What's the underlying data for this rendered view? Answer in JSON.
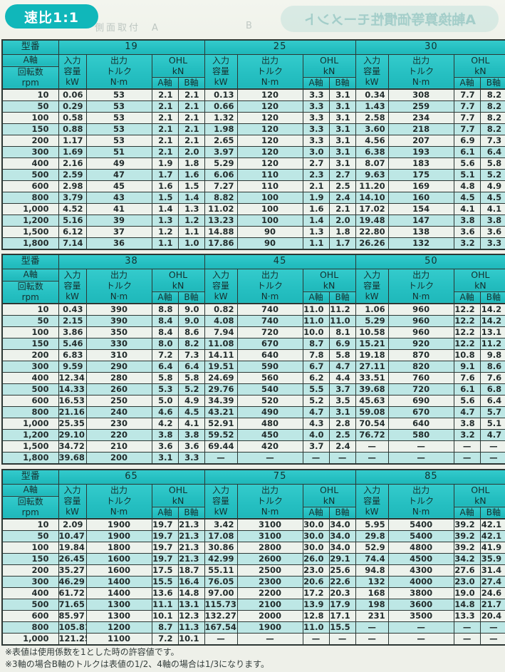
{
  "page": {
    "badge": "速比1:1",
    "badge_color": "#10b7ba",
    "header_teal": "#25bfc1",
    "stripe_color": "#bde7e5",
    "ghost_side_label": "側面取付　A",
    "ghost_side_label_b": "B",
    "ghost_mirror_title": "A軸換算等価慣性モーメント"
  },
  "columns": {
    "model": "型番",
    "axis_top": "A軸",
    "axis_bottom": "回転数\nrpm",
    "input": "入力\n容量\nkW",
    "output": "出力\nトルク\nN·m",
    "ohl": "OHL\nkN",
    "a": "A軸",
    "b": "B軸"
  },
  "notes": [
    "※表値は使用係数を1とした時の許容値です。",
    "※3軸の場合B軸のトルクは表値の1/2、4軸の場合は1/3になります。"
  ],
  "tables": [
    {
      "models": [
        "19",
        "25",
        "30"
      ],
      "rows": [
        {
          "rpm": "10",
          "values": [
            [
              "0.06",
              "53",
              "2.1",
              "2.1"
            ],
            [
              "0.13",
              "120",
              "3.3",
              "3.1"
            ],
            [
              "0.34",
              "308",
              "7.7",
              "8.2"
            ]
          ]
        },
        {
          "rpm": "50",
          "values": [
            [
              "0.29",
              "53",
              "2.1",
              "2.1"
            ],
            [
              "0.66",
              "120",
              "3.3",
              "3.1"
            ],
            [
              "1.43",
              "259",
              "7.7",
              "8.2"
            ]
          ]
        },
        {
          "rpm": "100",
          "values": [
            [
              "0.58",
              "53",
              "2.1",
              "2.1"
            ],
            [
              "1.32",
              "120",
              "3.3",
              "3.1"
            ],
            [
              "2.58",
              "234",
              "7.7",
              "8.2"
            ]
          ]
        },
        {
          "rpm": "150",
          "values": [
            [
              "0.88",
              "53",
              "2.1",
              "2.1"
            ],
            [
              "1.98",
              "120",
              "3.3",
              "3.1"
            ],
            [
              "3.60",
              "218",
              "7.7",
              "8.2"
            ]
          ]
        },
        {
          "rpm": "200",
          "values": [
            [
              "1.17",
              "53",
              "2.1",
              "2.1"
            ],
            [
              "2.65",
              "120",
              "3.3",
              "3.1"
            ],
            [
              "4.56",
              "207",
              "6.9",
              "7.3"
            ]
          ]
        },
        {
          "rpm": "300",
          "values": [
            [
              "1.69",
              "51",
              "2.1",
              "2.0"
            ],
            [
              "3.97",
              "120",
              "3.0",
              "3.1"
            ],
            [
              "6.38",
              "193",
              "6.1",
              "6.4"
            ]
          ]
        },
        {
          "rpm": "400",
          "values": [
            [
              "2.16",
              "49",
              "1.9",
              "1.8"
            ],
            [
              "5.29",
              "120",
              "2.7",
              "3.1"
            ],
            [
              "8.07",
              "183",
              "5.6",
              "5.8"
            ]
          ]
        },
        {
          "rpm": "500",
          "values": [
            [
              "2.59",
              "47",
              "1.7",
              "1.6"
            ],
            [
              "6.06",
              "110",
              "2.3",
              "2.7"
            ],
            [
              "9.63",
              "175",
              "5.1",
              "5.2"
            ]
          ]
        },
        {
          "rpm": "600",
          "values": [
            [
              "2.98",
              "45",
              "1.6",
              "1.5"
            ],
            [
              "7.27",
              "110",
              "2.1",
              "2.5"
            ],
            [
              "11.20",
              "169",
              "4.8",
              "4.9"
            ]
          ]
        },
        {
          "rpm": "800",
          "values": [
            [
              "3.79",
              "43",
              "1.5",
              "1.4"
            ],
            [
              "8.82",
              "100",
              "1.9",
              "2.4"
            ],
            [
              "14.10",
              "160",
              "4.5",
              "4.5"
            ]
          ]
        },
        {
          "rpm": "1,000",
          "values": [
            [
              "4.52",
              "41",
              "1.4",
              "1.3"
            ],
            [
              "11.02",
              "100",
              "1.6",
              "2.1"
            ],
            [
              "17.02",
              "154",
              "4.1",
              "4.1"
            ]
          ]
        },
        {
          "rpm": "1,200",
          "values": [
            [
              "5.16",
              "39",
              "1.3",
              "1.2"
            ],
            [
              "13.23",
              "100",
              "1.4",
              "2.0"
            ],
            [
              "19.48",
              "147",
              "3.8",
              "3.8"
            ]
          ]
        },
        {
          "rpm": "1,500",
          "values": [
            [
              "6.12",
              "37",
              "1.2",
              "1.1"
            ],
            [
              "14.88",
              "90",
              "1.3",
              "1.8"
            ],
            [
              "22.80",
              "138",
              "3.6",
              "3.6"
            ]
          ]
        },
        {
          "rpm": "1,800",
          "values": [
            [
              "7.14",
              "36",
              "1.1",
              "1.0"
            ],
            [
              "17.86",
              "90",
              "1.1",
              "1.7"
            ],
            [
              "26.26",
              "132",
              "3.2",
              "3.3"
            ]
          ]
        }
      ]
    },
    {
      "models": [
        "38",
        "45",
        "50"
      ],
      "rows": [
        {
          "rpm": "10",
          "values": [
            [
              "0.43",
              "390",
              "8.8",
              "9.0"
            ],
            [
              "0.82",
              "740",
              "11.0",
              "11.2"
            ],
            [
              "1.06",
              "960",
              "12.2",
              "14.2"
            ]
          ]
        },
        {
          "rpm": "50",
          "values": [
            [
              "2.15",
              "390",
              "8.4",
              "9.0"
            ],
            [
              "4.08",
              "740",
              "11.0",
              "11.0"
            ],
            [
              "5.29",
              "960",
              "12.2",
              "14.2"
            ]
          ]
        },
        {
          "rpm": "100",
          "values": [
            [
              "3.86",
              "350",
              "8.4",
              "8.6"
            ],
            [
              "7.94",
              "720",
              "10.0",
              "8.1"
            ],
            [
              "10.58",
              "960",
              "12.2",
              "13.1"
            ]
          ]
        },
        {
          "rpm": "150",
          "values": [
            [
              "5.46",
              "330",
              "8.0",
              "8.2"
            ],
            [
              "11.08",
              "670",
              "8.7",
              "6.9"
            ],
            [
              "15.21",
              "920",
              "12.2",
              "11.2"
            ]
          ]
        },
        {
          "rpm": "200",
          "values": [
            [
              "6.83",
              "310",
              "7.2",
              "7.3"
            ],
            [
              "14.11",
              "640",
              "7.8",
              "5.8"
            ],
            [
              "19.18",
              "870",
              "10.8",
              "9.8"
            ]
          ]
        },
        {
          "rpm": "300",
          "values": [
            [
              "9.59",
              "290",
              "6.4",
              "6.4"
            ],
            [
              "19.51",
              "590",
              "6.7",
              "4.7"
            ],
            [
              "27.11",
              "820",
              "9.1",
              "8.6"
            ]
          ]
        },
        {
          "rpm": "400",
          "values": [
            [
              "12.34",
              "280",
              "5.8",
              "5.8"
            ],
            [
              "24.69",
              "560",
              "6.2",
              "4.4"
            ],
            [
              "33.51",
              "760",
              "7.6",
              "7.6"
            ]
          ]
        },
        {
          "rpm": "500",
          "values": [
            [
              "14.33",
              "260",
              "5.3",
              "5.2"
            ],
            [
              "29.76",
              "540",
              "5.5",
              "3.7"
            ],
            [
              "39.68",
              "720",
              "6.1",
              "6.8"
            ]
          ]
        },
        {
          "rpm": "600",
          "values": [
            [
              "16.53",
              "250",
              "5.0",
              "4.9"
            ],
            [
              "34.39",
              "520",
              "5.2",
              "3.5"
            ],
            [
              "45.63",
              "690",
              "5.6",
              "6.4"
            ]
          ]
        },
        {
          "rpm": "800",
          "values": [
            [
              "21.16",
              "240",
              "4.6",
              "4.5"
            ],
            [
              "43.21",
              "490",
              "4.7",
              "3.1"
            ],
            [
              "59.08",
              "670",
              "4.7",
              "5.7"
            ]
          ]
        },
        {
          "rpm": "1,000",
          "values": [
            [
              "25.35",
              "230",
              "4.2",
              "4.1"
            ],
            [
              "52.91",
              "480",
              "4.3",
              "2.8"
            ],
            [
              "70.54",
              "640",
              "3.8",
              "5.1"
            ]
          ]
        },
        {
          "rpm": "1,200",
          "values": [
            [
              "29.10",
              "220",
              "3.8",
              "3.8"
            ],
            [
              "59.52",
              "450",
              "4.0",
              "2.5"
            ],
            [
              "76.72",
              "580",
              "3.2",
              "4.7"
            ]
          ]
        },
        {
          "rpm": "1,500",
          "values": [
            [
              "34.72",
              "210",
              "3.6",
              "3.6"
            ],
            [
              "69.44",
              "420",
              "3.7",
              "2.4"
            ],
            [
              "—",
              "—",
              "—",
              "—"
            ]
          ]
        },
        {
          "rpm": "1,800",
          "values": [
            [
              "39.68",
              "200",
              "3.1",
              "3.3"
            ],
            [
              "—",
              "—",
              "—",
              "—"
            ],
            [
              "—",
              "—",
              "—",
              "—"
            ]
          ]
        }
      ]
    },
    {
      "models": [
        "65",
        "75",
        "85"
      ],
      "rows": [
        {
          "rpm": "10",
          "values": [
            [
              "2.09",
              "1900",
              "19.7",
              "21.3"
            ],
            [
              "3.42",
              "3100",
              "30.0",
              "34.0"
            ],
            [
              "5.95",
              "5400",
              "39.2",
              "42.1"
            ]
          ]
        },
        {
          "rpm": "50",
          "values": [
            [
              "10.47",
              "1900",
              "19.7",
              "21.3"
            ],
            [
              "17.08",
              "3100",
              "30.0",
              "34.0"
            ],
            [
              "29.8",
              "5400",
              "39.2",
              "42.1"
            ]
          ]
        },
        {
          "rpm": "100",
          "values": [
            [
              "19.84",
              "1800",
              "19.7",
              "21.3"
            ],
            [
              "30.86",
              "2800",
              "30.0",
              "34.0"
            ],
            [
              "52.9",
              "4800",
              "39.2",
              "41.9"
            ]
          ]
        },
        {
          "rpm": "150",
          "values": [
            [
              "26.45",
              "1600",
              "19.7",
              "21.3"
            ],
            [
              "42.99",
              "2600",
              "26.0",
              "29.1"
            ],
            [
              "74.4",
              "4500",
              "34.2",
              "35.9"
            ]
          ]
        },
        {
          "rpm": "200",
          "values": [
            [
              "35.27",
              "1600",
              "17.5",
              "18.7"
            ],
            [
              "55.11",
              "2500",
              "23.0",
              "25.6"
            ],
            [
              "94.8",
              "4300",
              "27.6",
              "31.4"
            ]
          ]
        },
        {
          "rpm": "300",
          "values": [
            [
              "46.29",
              "1400",
              "15.5",
              "16.4"
            ],
            [
              "76.05",
              "2300",
              "20.6",
              "22.6"
            ],
            [
              "132",
              "4000",
              "23.0",
              "27.4"
            ]
          ]
        },
        {
          "rpm": "400",
          "values": [
            [
              "61.72",
              "1400",
              "13.6",
              "14.8"
            ],
            [
              "97.00",
              "2200",
              "17.2",
              "20.3"
            ],
            [
              "168",
              "3800",
              "19.0",
              "24.6"
            ]
          ]
        },
        {
          "rpm": "500",
          "values": [
            [
              "71.65",
              "1300",
              "11.1",
              "13.1"
            ],
            [
              "115.73",
              "2100",
              "13.9",
              "17.9"
            ],
            [
              "198",
              "3600",
              "14.8",
              "21.7"
            ]
          ]
        },
        {
          "rpm": "600",
          "values": [
            [
              "85.97",
              "1300",
              "10.1",
              "12.3"
            ],
            [
              "132.27",
              "2000",
              "12.8",
              "17.1"
            ],
            [
              "231",
              "3500",
              "13.3",
              "20.4"
            ]
          ]
        },
        {
          "rpm": "800",
          "values": [
            [
              "105.81",
              "1200",
              "8.7",
              "11.3"
            ],
            [
              "167.54",
              "1900",
              "11.0",
              "15.5"
            ],
            [
              "—",
              "—",
              "—",
              "—"
            ]
          ]
        },
        {
          "rpm": "1,000",
          "values": [
            [
              "121.25",
              "1100",
              "7.2",
              "10.1"
            ],
            [
              "—",
              "—",
              "—",
              "—"
            ],
            [
              "—",
              "—",
              "—",
              "—"
            ]
          ]
        }
      ]
    }
  ]
}
